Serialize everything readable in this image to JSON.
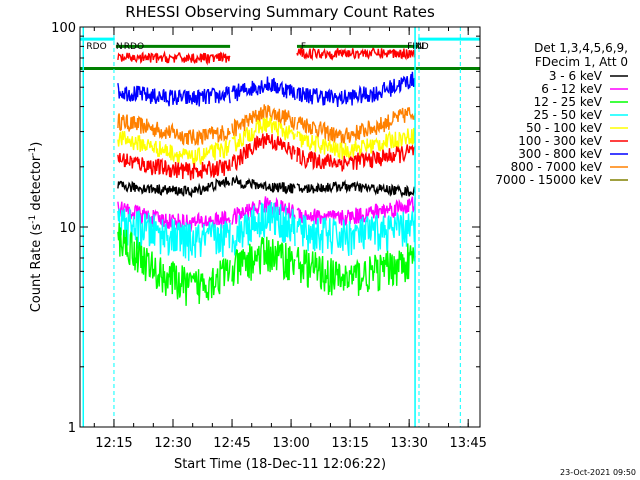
{
  "chart_data": {
    "type": "line",
    "title": "RHESSI Observing Summary Count Rates",
    "xlabel": "Start Time (18-Dec-11 12:06:22)",
    "ylabel_parts": [
      "Count Rate (s",
      "-1",
      " detector",
      "-1",
      ")"
    ],
    "yscale": "log",
    "ylim": [
      1,
      100
    ],
    "xlim_minutes_after_1200": [
      6.37,
      48.0
    ],
    "x_tick_labels": [
      "12:15",
      "12:30",
      "12:45",
      "13:00",
      "13:15",
      "13:30",
      "13:45"
    ],
    "x_tick_minutes": [
      15,
      30,
      45,
      60,
      75,
      90,
      105
    ],
    "y_tick_labels": [
      "1",
      "10",
      "100"
    ],
    "y_tick_values": [
      1,
      10,
      100
    ],
    "legend_header": [
      "Det 1,3,4,5,6,9,",
      "FDecim 1, Att 0"
    ],
    "legend_placement": "right",
    "timestamp": "23-Oct-2021 09:50",
    "segments_minutes": [
      [
        16,
        44.5
      ],
      [
        45,
        61
      ],
      [
        61.5,
        91.5
      ]
    ],
    "series": [
      {
        "name": "3 - 6 keV",
        "color": "#000000",
        "values": [
          16,
          15.5,
          15,
          17,
          16,
          15.5,
          16,
          15.5,
          15
        ]
      },
      {
        "name": "6 - 12 keV",
        "color": "#ff00ff",
        "values": [
          12.5,
          11,
          10.5,
          11,
          13,
          11.5,
          11,
          12,
          13
        ]
      },
      {
        "name": "12 - 25 keV",
        "color": "#00ff00",
        "values": [
          9,
          6,
          5,
          6,
          7.5,
          6.5,
          5.5,
          6,
          7
        ]
      },
      {
        "name": "25 - 50 keV",
        "color": "#00ffff",
        "values": [
          10.5,
          9.5,
          8.5,
          9,
          11.5,
          9.5,
          9,
          9.5,
          10
        ]
      },
      {
        "name": "50 - 100 keV",
        "color": "#ffff00",
        "values": [
          28,
          25,
          22,
          25,
          33,
          27,
          24,
          26,
          29
        ]
      },
      {
        "name": "100 - 300 keV",
        "color": "#ff0000",
        "values": [
          22,
          20,
          19,
          20,
          28,
          22,
          21,
          22,
          24
        ]
      },
      {
        "name": "300 - 800 keV",
        "color": "#0000ff",
        "values": [
          48,
          45,
          44,
          46,
          52,
          46,
          44,
          47,
          55
        ]
      },
      {
        "name": "800 - 7000 keV",
        "color": "#ff8000",
        "values": [
          34,
          31,
          28,
          30,
          38,
          33,
          28,
          32,
          38
        ]
      },
      {
        "name": "7000 - 15000 keV",
        "color": "#808000",
        "values": []
      }
    ],
    "red_upper_segments": [
      [
        16,
        44.5,
        70
      ],
      [
        61.5,
        91.5,
        74
      ]
    ],
    "annotations": [
      {
        "text": "RDO",
        "color": "#008000",
        "x": 8
      },
      {
        "text": "N",
        "color": "#00ffff",
        "x": 15.5
      },
      {
        "text": "RDO",
        "color": "#008000",
        "x": 17.5
      },
      {
        "text": "F",
        "color": "#008000",
        "x": 62.5
      },
      {
        "text": "FIND",
        "color": "#008000",
        "x": 89.5
      },
      {
        "text": "N",
        "color": "#00ffff",
        "x": 92
      }
    ],
    "flag_lines": [
      {
        "color": "#00ffff",
        "y": 87,
        "ranges": [
          [
            6.37,
            15.2
          ],
          [
            92.3,
            108
          ]
        ]
      },
      {
        "color": "#008000",
        "y": 80,
        "ranges": [
          [
            15.5,
            44.5
          ],
          [
            61.5,
            92.5
          ]
        ]
      },
      {
        "color": "#008000",
        "y": 62,
        "ranges": [
          [
            6.37,
            108
          ]
        ]
      }
    ],
    "vlines_solid": [
      {
        "x": 7.2,
        "color": "#00ffff"
      },
      {
        "x": 91.5,
        "color": "#00ffff"
      }
    ],
    "vlines_dashed": [
      {
        "x": 15,
        "color": "#00ffff"
      },
      {
        "x": 92.5,
        "color": "#00ffff"
      },
      {
        "x": 103,
        "color": "#00ffff"
      }
    ]
  }
}
